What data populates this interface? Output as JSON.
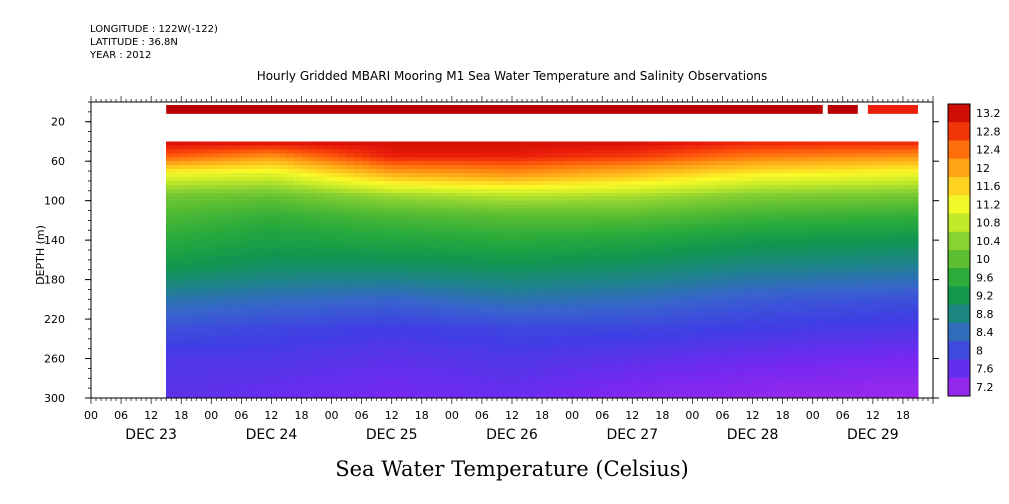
{
  "header": {
    "longitude": "LONGITUDE : 122W(-122)",
    "latitude": "LATITUDE : 36.8N",
    "year": "YEAR : 2012"
  },
  "chart_data": {
    "type": "heatmap",
    "title": "Hourly Gridded MBARI Mooring M1 Sea Water Temperature and Salinity Observations",
    "bottom_title": "Sea Water Temperature (Celsius)",
    "ylabel": "DEPTH (m)",
    "ylim": [
      300,
      0
    ],
    "y_ticks": [
      "20",
      "60",
      "100",
      "140",
      "180",
      "220",
      "260",
      "300"
    ],
    "x_hour_ticks": [
      "00",
      "06",
      "12",
      "18",
      "00",
      "06",
      "12",
      "18",
      "00",
      "06",
      "12",
      "18",
      "00",
      "06",
      "12",
      "18",
      "00",
      "06",
      "12",
      "18",
      "00",
      "06",
      "12",
      "18",
      "00",
      "06",
      "12",
      "18"
    ],
    "x_day_labels": [
      "DEC 23",
      "DEC 24",
      "DEC 25",
      "DEC 26",
      "DEC 27",
      "DEC 28",
      "DEC 29"
    ],
    "colorbar_labels": [
      "13.2",
      "12.8",
      "12.4",
      "12",
      "11.6",
      "11.2",
      "10.8",
      "10.4",
      "10",
      "9.6",
      "9.2",
      "8.8",
      "8.4",
      "8",
      "7.6",
      "7.2"
    ],
    "colorbar_range": [
      7.2,
      13.2
    ],
    "data_start_hour": 15,
    "data_end_hour": 165,
    "surface_gaps": [
      [
        146,
        147
      ],
      [
        153,
        155
      ]
    ],
    "profiles": [
      {
        "hour": 15,
        "temps": [
          13.2,
          13.0,
          12.4,
          11.0,
          10.2,
          9.9,
          9.6,
          9.2,
          8.6,
          8.2,
          7.9,
          7.8
        ]
      },
      {
        "hour": 36,
        "temps": [
          13.2,
          13.0,
          12.0,
          10.9,
          10.1,
          9.7,
          9.4,
          9.0,
          8.5,
          8.1,
          7.9,
          7.7
        ]
      },
      {
        "hour": 60,
        "temps": [
          13.2,
          13.0,
          12.8,
          11.7,
          10.5,
          9.9,
          9.5,
          9.0,
          8.4,
          8.0,
          7.8,
          7.6
        ]
      },
      {
        "hour": 84,
        "temps": [
          13.2,
          13.0,
          12.8,
          11.9,
          10.7,
          10.0,
          9.6,
          9.1,
          8.6,
          8.1,
          7.9,
          7.7
        ]
      },
      {
        "hour": 108,
        "temps": [
          13.2,
          13.0,
          12.6,
          11.6,
          10.6,
          10.0,
          9.5,
          9.0,
          8.5,
          8.1,
          7.8,
          7.5
        ]
      },
      {
        "hour": 132,
        "temps": [
          13.2,
          12.8,
          12.2,
          11.2,
          10.3,
          9.8,
          9.3,
          8.8,
          8.3,
          8.0,
          7.7,
          7.4
        ]
      },
      {
        "hour": 165,
        "temps": [
          13.2,
          12.8,
          12.0,
          11.0,
          10.2,
          9.7,
          9.2,
          8.7,
          8.2,
          7.9,
          7.6,
          7.3
        ]
      }
    ],
    "profile_depths": [
      10,
      40,
      55,
      75,
      95,
      115,
      140,
      170,
      200,
      230,
      260,
      300
    ]
  }
}
